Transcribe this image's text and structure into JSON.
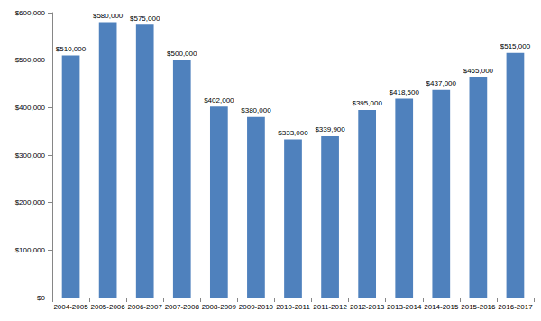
{
  "chart_data": {
    "type": "bar",
    "categories": [
      "2004-2005",
      "2005-2006",
      "2006-2007",
      "2007-2008",
      "2008-2009",
      "2009-2010",
      "2010-2011",
      "2011-2012",
      "2012-2013",
      "2013-2014",
      "2014-2015",
      "2015-2016",
      "2016-2017"
    ],
    "values": [
      510000,
      580000,
      575000,
      500000,
      402000,
      380000,
      333000,
      339900,
      395000,
      418500,
      437000,
      465000,
      515000
    ],
    "value_labels": [
      "$510,000",
      "$580,000",
      "$575,000",
      "$500,000",
      "$402,000",
      "$380,000",
      "$333,000",
      "$339,900",
      "$395,000",
      "$418,500",
      "$437,000",
      "$465,000",
      "$515,000"
    ],
    "data_labels": true,
    "color": "#4f81bd",
    "ylim": [
      0,
      600000
    ],
    "yticks": [
      {
        "value": 0,
        "label": "$0"
      },
      {
        "value": 100000,
        "label": "$100,000"
      },
      {
        "value": 200000,
        "label": "$200,000"
      },
      {
        "value": 300000,
        "label": "$300,000"
      },
      {
        "value": 400000,
        "label": "$400,000"
      },
      {
        "value": 500000,
        "label": "$500,000"
      },
      {
        "value": 600000,
        "label": "$600,000"
      }
    ],
    "grid": false
  }
}
